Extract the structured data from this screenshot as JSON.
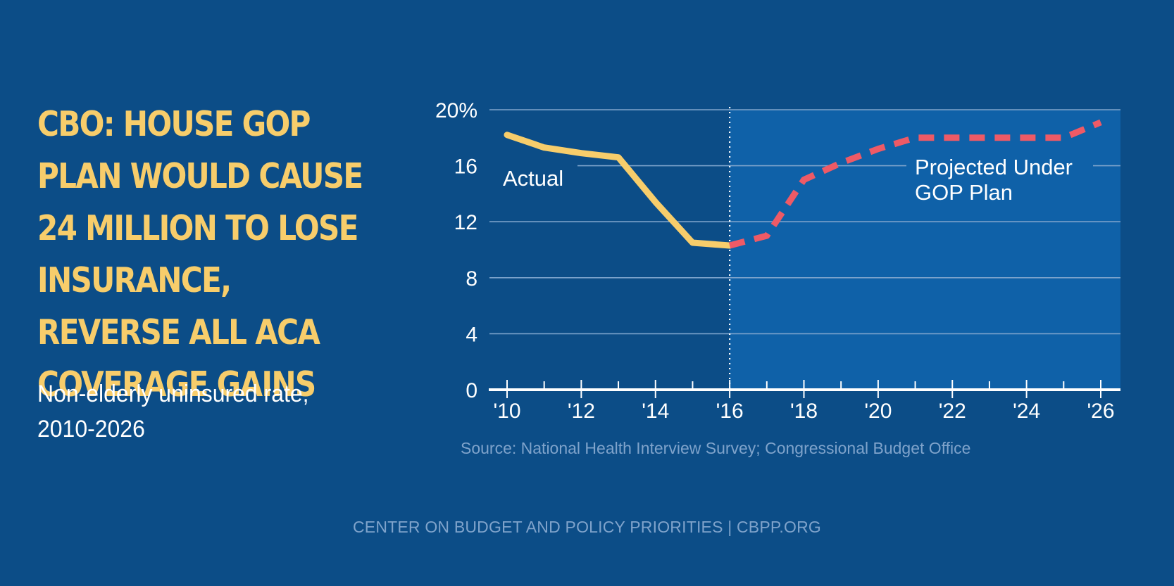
{
  "headline": "CBO: House GOP Plan Would Cause 24 Million to Lose Insurance, Reverse All ACA Coverage Gains",
  "subtitle": "Non-elderly uninsured rate, 2010-2026",
  "source": "Source: National Health Interview Survey; Congressional Budget Office",
  "footer": "CENTER ON BUDGET AND POLICY PRIORITIES | CBPP.ORG",
  "colors": {
    "background": "#0c4d87",
    "projection_panel": "#0f61a8",
    "actual_line": "#f7cd6b",
    "projected_line": "#ee5a66",
    "headline": "#f7cd6b"
  },
  "chart_data": {
    "type": "line",
    "title": "Non-elderly uninsured rate, 2010-2026",
    "xlabel": "",
    "ylabel": "",
    "xlim": [
      2010,
      2026
    ],
    "ylim": [
      0,
      20
    ],
    "yticks": [
      0,
      4,
      8,
      12,
      16,
      20
    ],
    "ytick_labels": [
      "0",
      "4",
      "8",
      "12",
      "16",
      "20%"
    ],
    "xticks": [
      2010,
      2012,
      2014,
      2016,
      2018,
      2020,
      2022,
      2024,
      2026
    ],
    "xtick_labels": [
      "'10",
      "'12",
      "'14",
      "'16",
      "'18",
      "'20",
      "'22",
      "'24",
      "'26"
    ],
    "minor_xticks": [
      2011,
      2013,
      2015,
      2017,
      2019,
      2021,
      2023,
      2025
    ],
    "divider_year": 2016,
    "grid": true,
    "series": [
      {
        "name": "Actual",
        "label": "Actual",
        "style": "solid",
        "x": [
          2010,
          2011,
          2012,
          2013,
          2014,
          2015,
          2016
        ],
        "values": [
          18.2,
          17.3,
          16.9,
          16.6,
          13.4,
          10.5,
          10.3
        ]
      },
      {
        "name": "Projected Under GOP Plan",
        "label_lines": [
          "Projected Under",
          "GOP Plan"
        ],
        "style": "dashed",
        "x": [
          2016,
          2017,
          2018,
          2019,
          2020,
          2021,
          2022,
          2023,
          2024,
          2025,
          2026
        ],
        "values": [
          10.3,
          11.0,
          15.0,
          16.2,
          17.2,
          18.0,
          18.0,
          18.0,
          18.0,
          18.0,
          19.1
        ]
      }
    ]
  }
}
